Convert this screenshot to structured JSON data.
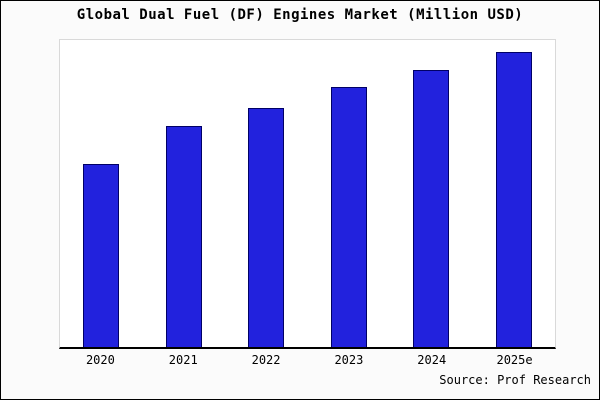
{
  "chart_data": {
    "type": "bar",
    "title": "Global Dual Fuel (DF) Engines Market (Million USD)",
    "categories": [
      "2020",
      "2021",
      "2022",
      "2023",
      "2024",
      "2025e"
    ],
    "values": [
      62,
      75,
      81,
      88,
      94,
      100
    ],
    "xlabel": "",
    "ylabel": "",
    "ylim": [
      0,
      104
    ],
    "grid": false,
    "legend": "none",
    "bar_fill": "#2222dd",
    "bar_border": "#000066"
  },
  "source": "Source: Prof Research"
}
